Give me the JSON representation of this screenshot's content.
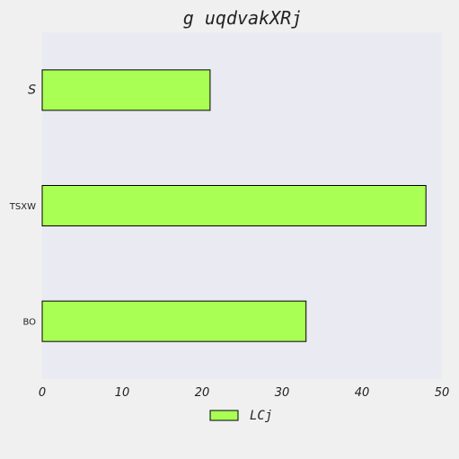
{
  "chart_data": {
    "type": "bar",
    "orientation": "horizontal",
    "title": "g uqdvakXRj",
    "categories": [
      "S",
      "TSXW",
      "BO"
    ],
    "series": [
      {
        "name": "LCj",
        "values": [
          21,
          48,
          33
        ]
      }
    ],
    "xlim": [
      0,
      50
    ],
    "x_ticks": [
      0,
      10,
      20,
      30,
      40,
      50
    ],
    "xlabel": "",
    "ylabel": "",
    "grid": false,
    "legend_position": "bottom-center",
    "colors": {
      "bar_fill": "#aaff55",
      "bar_stroke": "#000000",
      "plot_background": "#eaeaf2",
      "page_background": "#f0f0f0"
    }
  }
}
